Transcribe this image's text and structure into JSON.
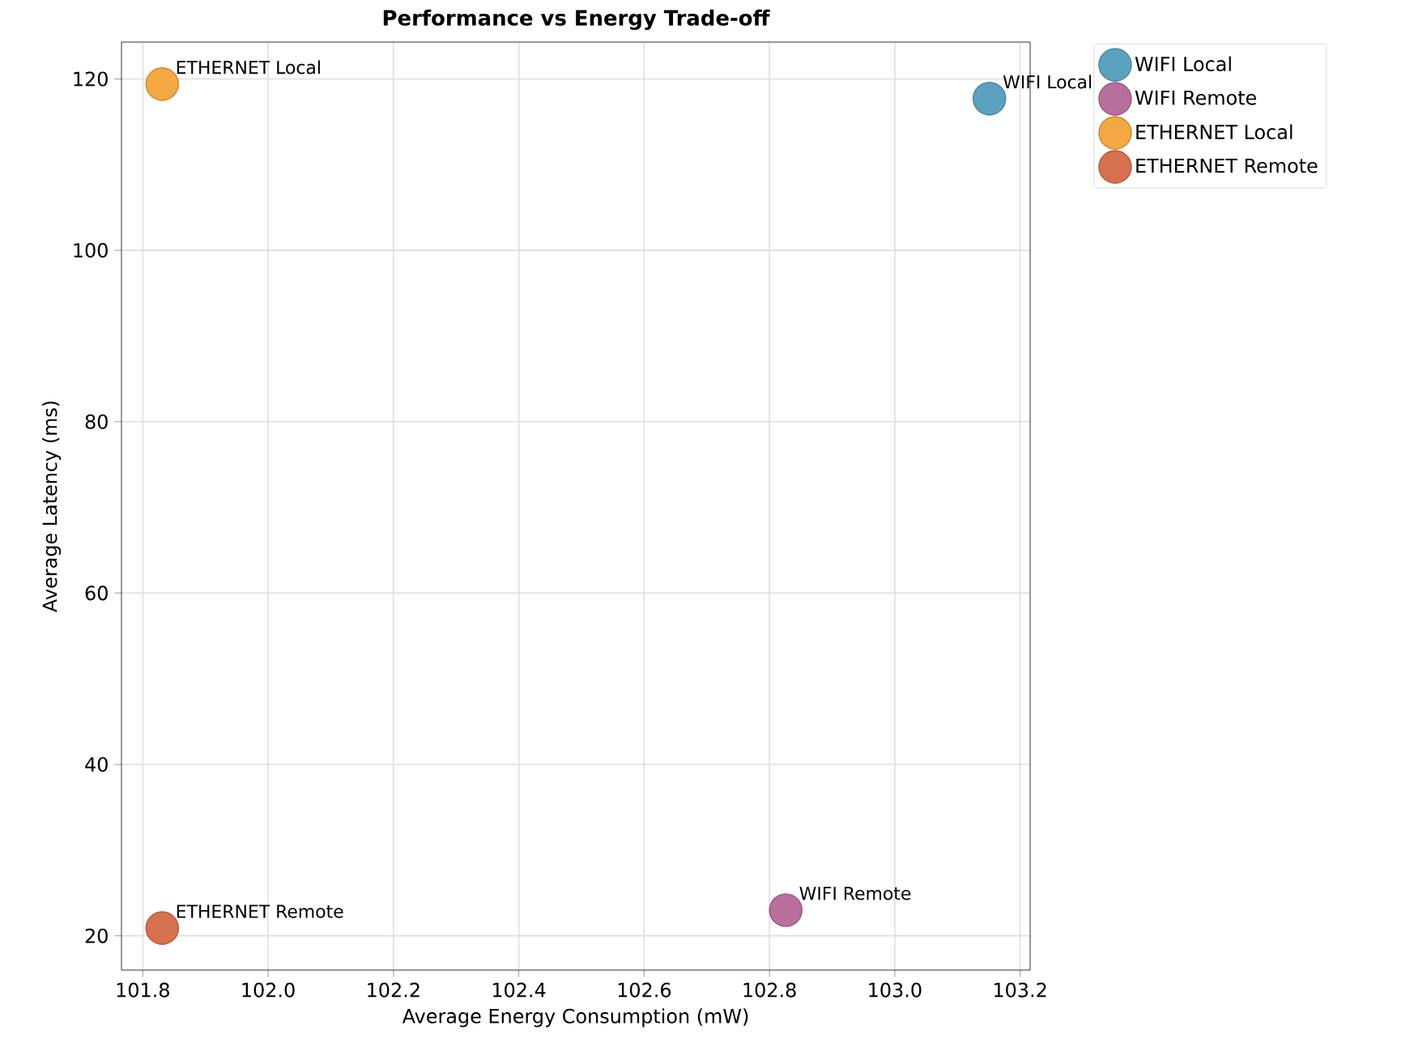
{
  "chart_data": {
    "type": "scatter",
    "title": "Performance vs Energy Trade-off",
    "xlabel": "Average Energy Consumption (mW)",
    "ylabel": "Average Latency (ms)",
    "xlim": [
      101.766,
      103.216
    ],
    "ylim": [
      16.0,
      124.3
    ],
    "xticks": [
      {
        "value": 101.8,
        "label": "101.8"
      },
      {
        "value": 102.0,
        "label": "102.0"
      },
      {
        "value": 102.2,
        "label": "102.2"
      },
      {
        "value": 102.4,
        "label": "102.4"
      },
      {
        "value": 102.6,
        "label": "102.6"
      },
      {
        "value": 102.8,
        "label": "102.8"
      },
      {
        "value": 103.0,
        "label": "103.0"
      },
      {
        "value": 103.2,
        "label": "103.2"
      }
    ],
    "yticks": [
      20,
      40,
      60,
      80,
      100,
      120
    ],
    "grid": true,
    "legend": "top right",
    "marker": "circle",
    "series": [
      {
        "name": "WIFI Local",
        "color": "#5ba2c0",
        "x": [
          103.151
        ],
        "values": [
          117.7
        ]
      },
      {
        "name": "WIFI Remote",
        "color": "#b86f9c",
        "x": [
          102.826
        ],
        "values": [
          23.0
        ]
      },
      {
        "name": "ETHERNET Local",
        "color": "#f3a843",
        "x": [
          101.831
        ],
        "values": [
          119.4
        ]
      },
      {
        "name": "ETHERNET Remote",
        "color": "#d7704f",
        "x": [
          101.831
        ],
        "values": [
          20.9
        ]
      }
    ],
    "annotations": [
      {
        "text": "WIFI Local",
        "x": 103.151,
        "y": 117.7
      },
      {
        "text": "WIFI Remote",
        "x": 102.826,
        "y": 23.0
      },
      {
        "text": "ETHERNET Local",
        "x": 101.831,
        "y": 119.4
      },
      {
        "text": "ETHERNET Remote",
        "x": 101.831,
        "y": 20.9
      }
    ]
  }
}
